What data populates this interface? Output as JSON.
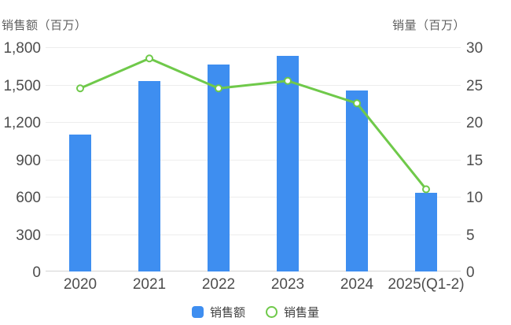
{
  "chart_data": {
    "type": "combo",
    "title": "",
    "categories": [
      "2020",
      "2021",
      "2022",
      "2023",
      "2024",
      "2025(Q1-2)"
    ],
    "series": [
      {
        "name": "销售额",
        "type": "bar",
        "axis": "left",
        "color": "#3E8EF0",
        "values": [
          1100,
          1530,
          1660,
          1730,
          1450,
          630
        ]
      },
      {
        "name": "销售量",
        "type": "line",
        "axis": "right",
        "color": "#6FC94A",
        "marker": "open-circle",
        "values": [
          24.5,
          28.5,
          24.5,
          25.5,
          22.5,
          11
        ]
      }
    ],
    "left_axis": {
      "title": "销售额（百万）",
      "min": 0,
      "max": 1800,
      "ticks": [
        "1,800",
        "1,500",
        "1,200",
        "900",
        "600",
        "300",
        "0"
      ]
    },
    "right_axis": {
      "title": "销量（百万）",
      "min": 0,
      "max": 30,
      "ticks": [
        "30",
        "25",
        "20",
        "15",
        "10",
        "5",
        "0"
      ]
    },
    "grid": true,
    "legend_position": "bottom",
    "colors": {
      "bar": "#3E8EF0",
      "line": "#6FC94A",
      "gridline": "#ededed",
      "axisline": "#d4d4d4",
      "tick_text": "#4d4d4d",
      "title_text": "#5f5f5f",
      "legend_text": "#404040",
      "background": "#ffffff"
    }
  }
}
